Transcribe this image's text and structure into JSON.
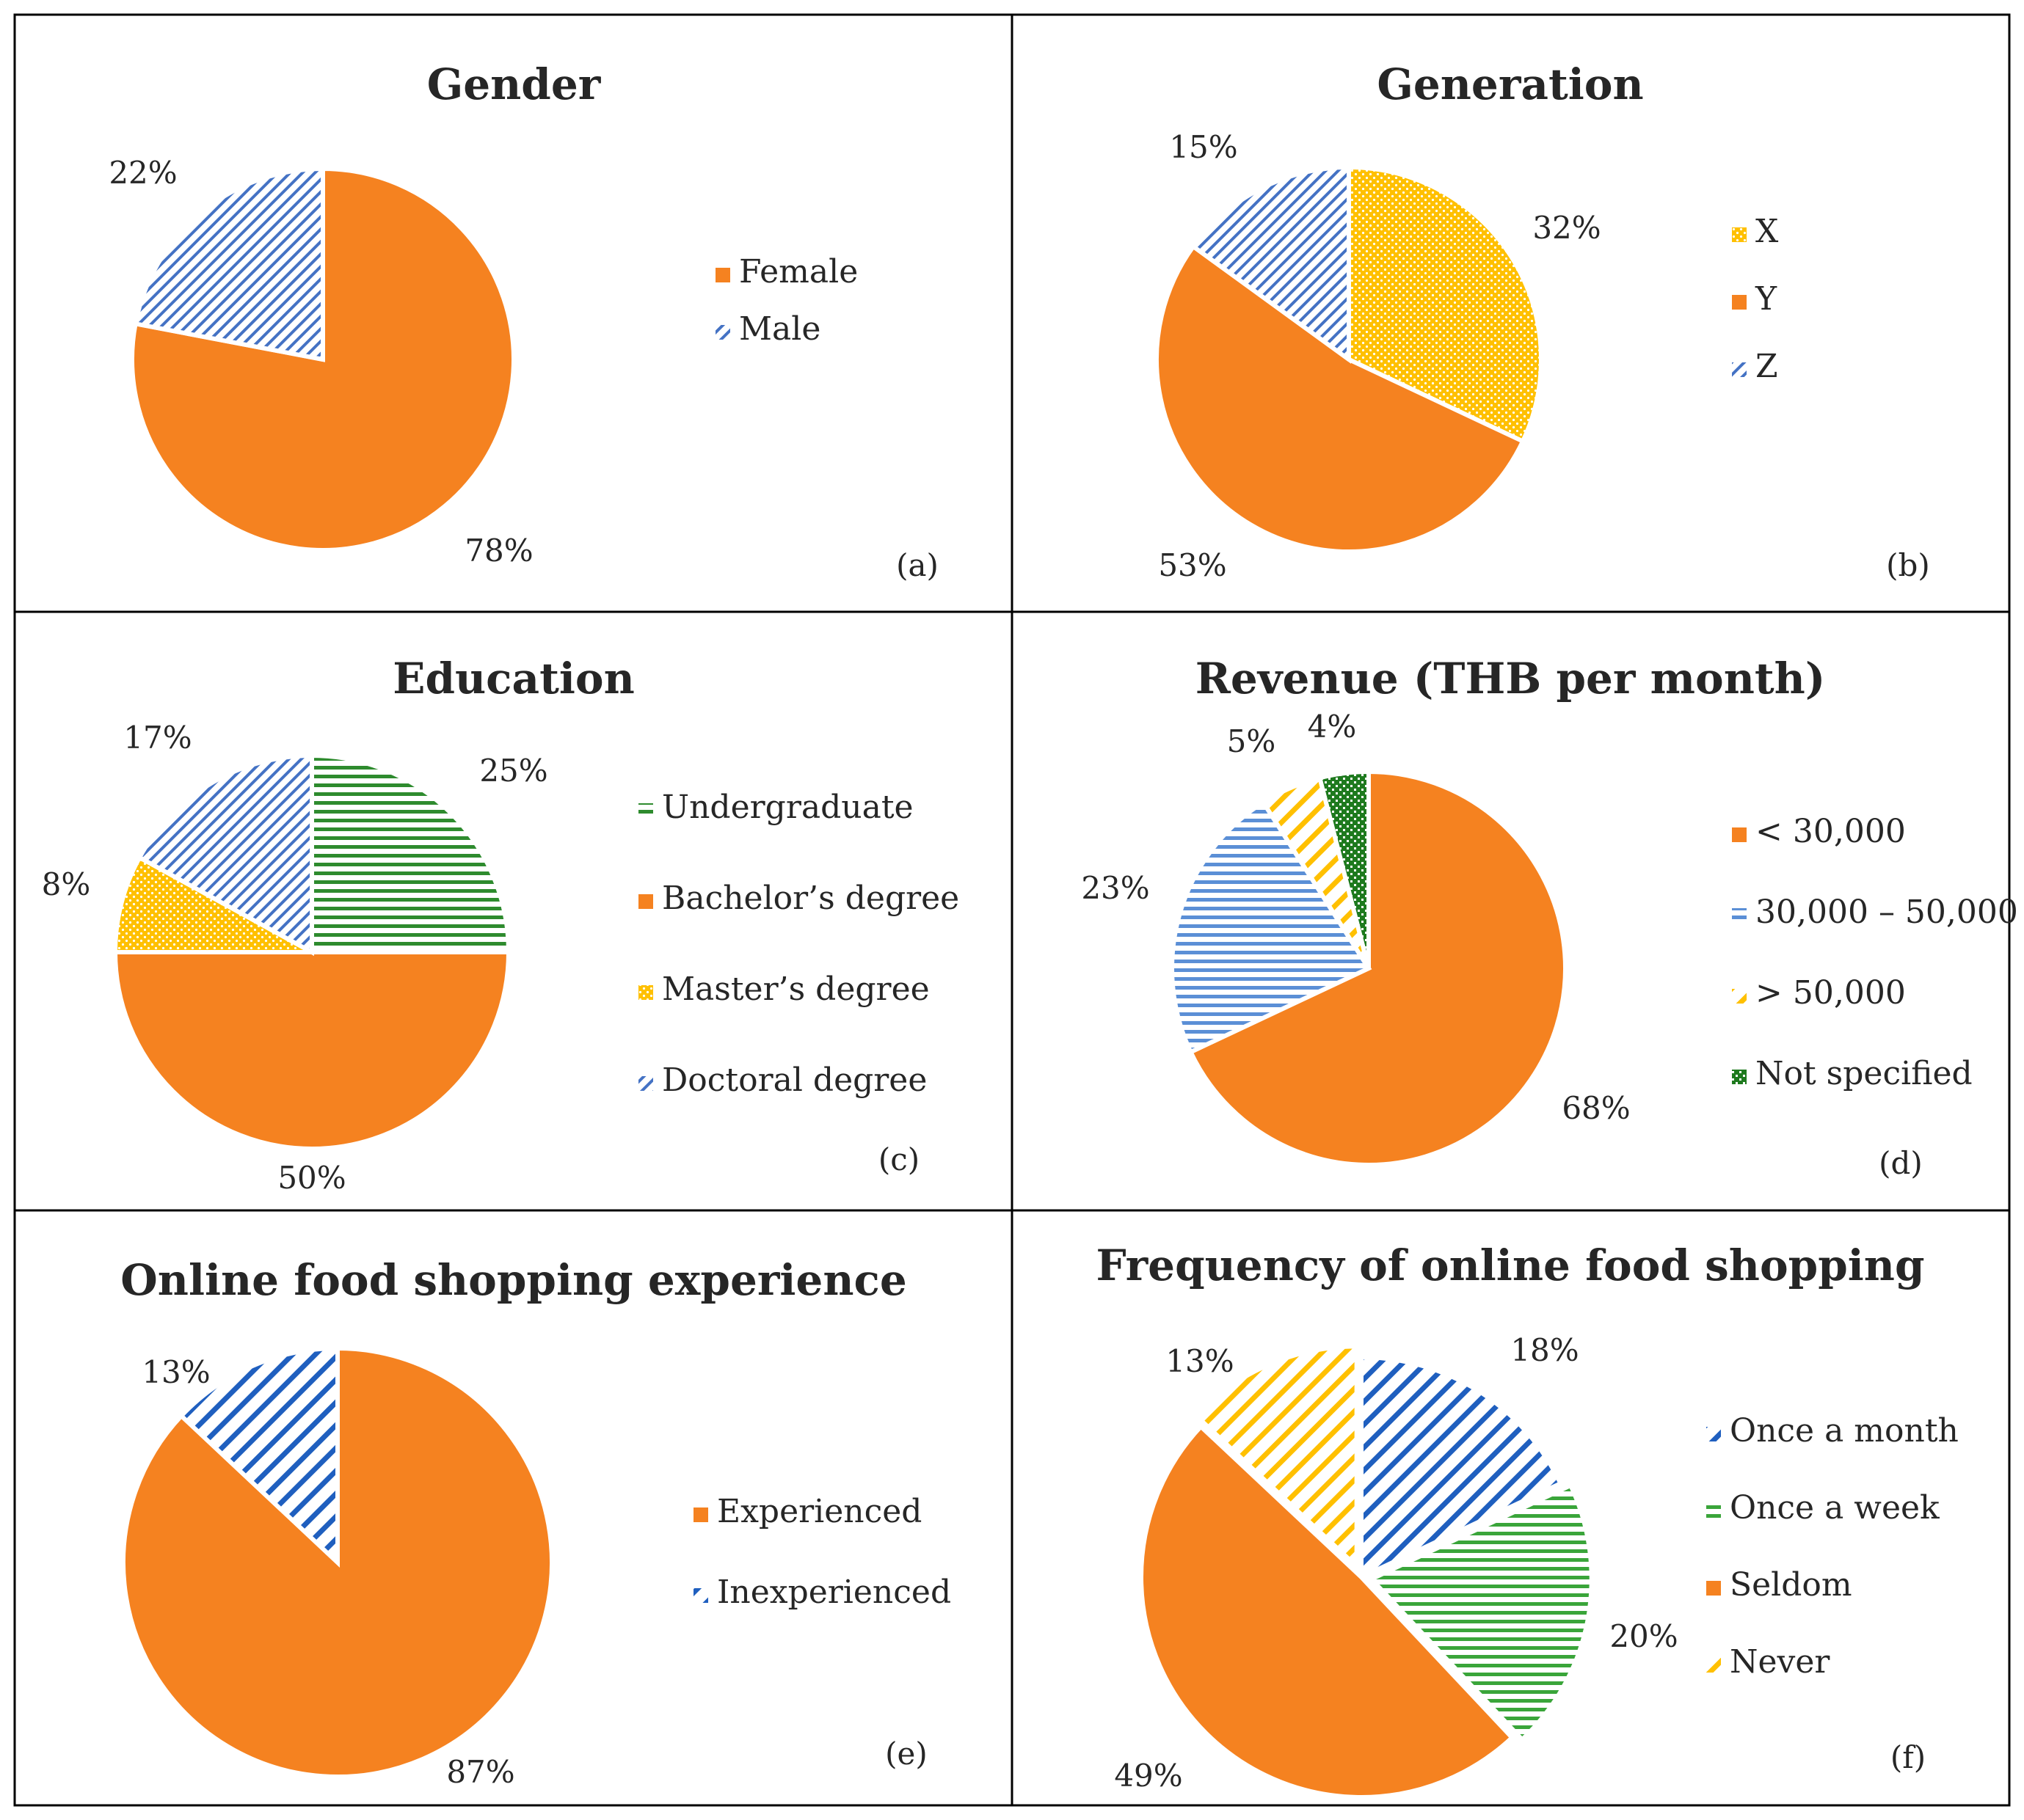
{
  "chart_data": [
    {
      "type": "pie",
      "panel_tag": "(a)",
      "title": "Gender",
      "slices": [
        {
          "label": "Female",
          "value": 78,
          "pct_label": "78%",
          "color": "#f58220",
          "pattern": "solid"
        },
        {
          "label": "Male",
          "value": 22,
          "pct_label": "22%",
          "color": "#4472c4",
          "pattern": "diag"
        }
      ]
    },
    {
      "type": "pie",
      "panel_tag": "(b)",
      "title": "Generation",
      "slices": [
        {
          "label": "X",
          "value": 32,
          "pct_label": "32%",
          "color": "#ffc000",
          "pattern": "dots"
        },
        {
          "label": "Y",
          "value": 53,
          "pct_label": "53%",
          "color": "#f58220",
          "pattern": "solid"
        },
        {
          "label": "Z",
          "value": 15,
          "pct_label": "15%",
          "color": "#4472c4",
          "pattern": "diag"
        }
      ]
    },
    {
      "type": "pie",
      "panel_tag": "(c)",
      "title": "Education",
      "slices": [
        {
          "label": "Undergraduate",
          "value": 25,
          "pct_label": "25%",
          "color": "#2e8b2e",
          "pattern": "horiz"
        },
        {
          "label": "Bachelor’s degree",
          "value": 50,
          "pct_label": "50%",
          "color": "#f58220",
          "pattern": "solid"
        },
        {
          "label": "Master’s degree",
          "value": 8,
          "pct_label": "8%",
          "color": "#ffc000",
          "pattern": "dots"
        },
        {
          "label": "Doctoral degree",
          "value": 17,
          "pct_label": "17%",
          "color": "#4472c4",
          "pattern": "diag"
        }
      ]
    },
    {
      "type": "pie",
      "panel_tag": "(d)",
      "title": "Revenue (THB per month)",
      "slices": [
        {
          "label": "< 30,000",
          "value": 68,
          "pct_label": "68%",
          "color": "#f58220",
          "pattern": "solid"
        },
        {
          "label": "30,000 – 50,000",
          "value": 23,
          "pct_label": "23%",
          "color": "#5b8fd6",
          "pattern": "horiz"
        },
        {
          "label": "> 50,000",
          "value": 5,
          "pct_label": "5%",
          "color": "#ffc000",
          "pattern": "diagwide"
        },
        {
          "label": "Not specified",
          "value": 4,
          "pct_label": "4%",
          "color": "#1e7a1e",
          "pattern": "cross"
        }
      ]
    },
    {
      "type": "pie",
      "panel_tag": "(e)",
      "title": "Online food shopping  experience",
      "slices": [
        {
          "label": "Experienced",
          "value": 87,
          "pct_label": "87%",
          "color": "#f58220",
          "pattern": "solid"
        },
        {
          "label": "Inexperienced",
          "value": 13,
          "pct_label": "13%",
          "color": "#1f5fbf",
          "pattern": "diagwide"
        }
      ]
    },
    {
      "type": "pie",
      "panel_tag": "(f)",
      "title": "Frequency of online food shopping",
      "slices": [
        {
          "label": "Once a month",
          "value": 18,
          "pct_label": "18%",
          "color": "#1f5fbf",
          "pattern": "diagwide"
        },
        {
          "label": "Once a week",
          "value": 20,
          "pct_label": "20%",
          "color": "#3aa53a",
          "pattern": "horiz"
        },
        {
          "label": "Seldom",
          "value": 49,
          "pct_label": "49%",
          "color": "#f58220",
          "pattern": "solid"
        },
        {
          "label": "Never",
          "value": 13,
          "pct_label": "13%",
          "color": "#ffc000",
          "pattern": "diagwide"
        }
      ]
    }
  ]
}
